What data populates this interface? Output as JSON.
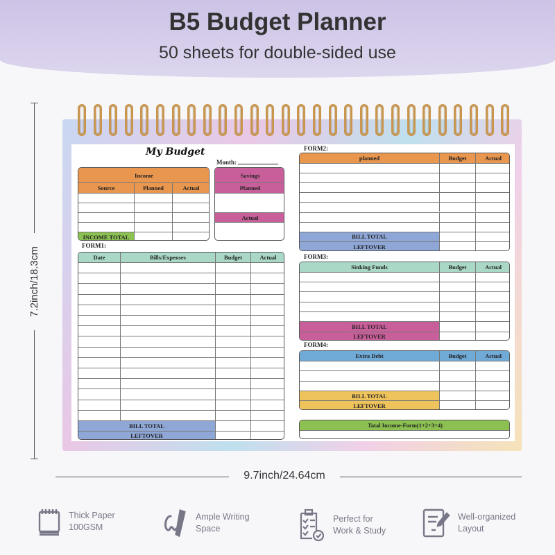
{
  "header": {
    "title": "B5 Budget Planner",
    "subtitle": "50 sheets for double-sided use"
  },
  "dimensions": {
    "height": "7.2inch/18.3cm",
    "width": "9.7inch/24.64cm"
  },
  "planner": {
    "title": "My Budget",
    "month_label": "Month:",
    "income": {
      "title": "Income",
      "columns": [
        "Source",
        "Planned",
        "Actual"
      ],
      "total": "INCOME TOTAL"
    },
    "savings": {
      "title": "Savings",
      "planned": "Planned",
      "actual": "Actual"
    },
    "form1": {
      "label": "FORM1:",
      "columns": [
        "Date",
        "Bills/Expenses",
        "Budget",
        "Actual"
      ],
      "bill_total": "BILL TOTAL",
      "leftover": "LEFTOVER"
    },
    "form2": {
      "label": "FORM2:",
      "columns": [
        "planned",
        "Budget",
        "Actual"
      ],
      "bill_total": "BILL TOTAL",
      "leftover": "LEFTOVER"
    },
    "form3": {
      "label": "FORM3:",
      "columns": [
        "Sinking Funds",
        "Budget",
        "Actual"
      ],
      "bill_total": "BILL TOTAL",
      "leftover": "LEFTOVER"
    },
    "form4": {
      "label": "FORM4:",
      "columns": [
        "Extra Debt",
        "Budget",
        "Actual"
      ],
      "bill_total": "BILL TOTAL",
      "leftover": "LEFTOVER"
    },
    "total": {
      "title": "Tatal Income-Form(1+2+3+4)"
    }
  },
  "colors": {
    "orange": "#e9964f",
    "pink": "#c95f9a",
    "teal": "#a9d9c6",
    "blue": "#8ea7d6",
    "green": "#8cc152",
    "sky": "#70aad7",
    "yellow": "#efc35c",
    "coil": "#c9964f"
  },
  "features": [
    {
      "icon": "notepad-icon",
      "line1": "Thick Paper",
      "line2": "100GSM"
    },
    {
      "icon": "pen-writing-icon",
      "line1": "Ample Writing",
      "line2": "Space"
    },
    {
      "icon": "clipboard-check-icon",
      "line1": "Perfect for",
      "line2": "Work & Study"
    },
    {
      "icon": "document-pen-icon",
      "line1": "Well-organized",
      "line2": "Layout"
    }
  ]
}
